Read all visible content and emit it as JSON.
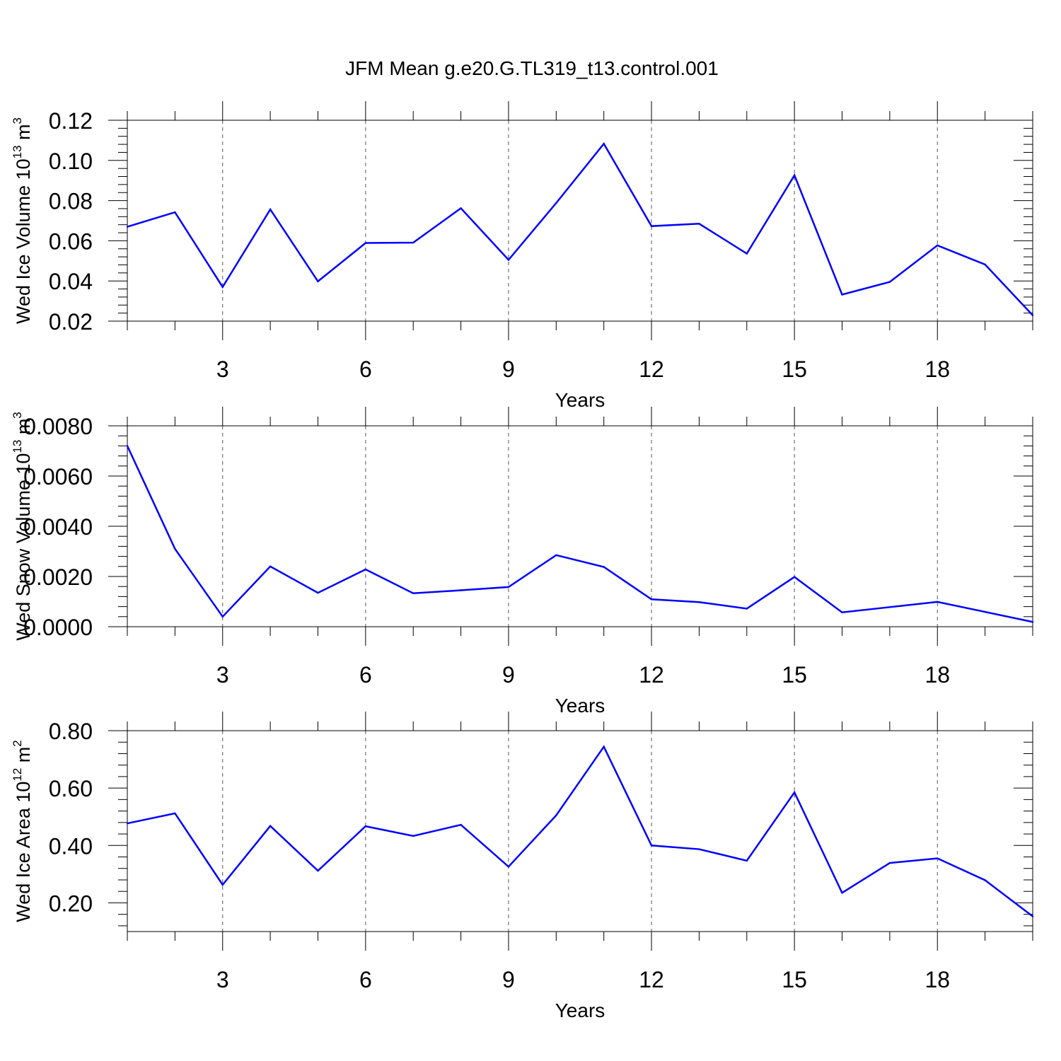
{
  "title": "JFM Mean g.e20.G.TL319_t13.control.001",
  "colors": {
    "series": "#0000ff",
    "axis": "#000000",
    "grid": "#555555"
  },
  "chart_data": [
    {
      "type": "line",
      "title": "JFM Mean g.e20.G.TL319_t13.control.001",
      "xlabel": "Years",
      "ylabel": {
        "text": "Wed Ice Volume 10",
        "exp": "13",
        "unit": " m",
        "unit_exp": "3"
      },
      "xlim": [
        1,
        20
      ],
      "ylim": [
        0.02,
        0.12
      ],
      "xticks": [
        3,
        6,
        9,
        12,
        15,
        18
      ],
      "yticks": [
        0.02,
        0.04,
        0.06,
        0.08,
        0.1,
        0.12
      ],
      "ytick_labels": [
        "0.02",
        "0.04",
        "0.06",
        "0.08",
        "0.10",
        "0.12"
      ],
      "grid": "x-dashed",
      "x": [
        1,
        2,
        3,
        4,
        5,
        6,
        7,
        8,
        9,
        10,
        11,
        12,
        13,
        14,
        15,
        16,
        17,
        18,
        19,
        20
      ],
      "series": [
        {
          "name": "Wed Ice Volume",
          "values": [
            0.067,
            0.0742,
            0.037,
            0.0756,
            0.0398,
            0.0589,
            0.0591,
            0.0762,
            0.0505,
            0.0788,
            0.1083,
            0.0673,
            0.0685,
            0.0536,
            0.0926,
            0.0332,
            0.0395,
            0.0577,
            0.0482,
            0.0229
          ]
        }
      ]
    },
    {
      "type": "line",
      "xlabel": "Years",
      "ylabel": {
        "text": "Wed Snow Volume 10",
        "exp": "13",
        "unit": " m",
        "unit_exp": "3"
      },
      "xlim": [
        1,
        20
      ],
      "ylim": [
        0.0,
        0.008
      ],
      "xticks": [
        3,
        6,
        9,
        12,
        15,
        18
      ],
      "yticks": [
        0.0,
        0.002,
        0.004,
        0.006,
        0.008
      ],
      "ytick_labels": [
        "0.0000",
        "0.0020",
        "0.0040",
        "0.0060",
        "0.0080"
      ],
      "grid": "x-dashed",
      "x": [
        1,
        2,
        3,
        4,
        5,
        6,
        7,
        8,
        9,
        10,
        11,
        12,
        13,
        14,
        15,
        16,
        17,
        18,
        19,
        20
      ],
      "series": [
        {
          "name": "Wed Snow Volume",
          "values": [
            0.0072,
            0.0031,
            0.0004,
            0.0024,
            0.00135,
            0.00228,
            0.00133,
            0.00145,
            0.00158,
            0.00285,
            0.00238,
            0.00109,
            0.00098,
            0.00072,
            0.00198,
            0.00057,
            0.00078,
            0.00099,
            0.00059,
            0.00019
          ]
        }
      ]
    },
    {
      "type": "line",
      "xlabel": "Years",
      "ylabel": {
        "text": "Wed Ice Area 10",
        "exp": "12",
        "unit": " m",
        "unit_exp": "2"
      },
      "xlim": [
        1,
        20
      ],
      "ylim": [
        0.1,
        0.8
      ],
      "xticks": [
        3,
        6,
        9,
        12,
        15,
        18
      ],
      "yticks": [
        0.2,
        0.4,
        0.6,
        0.8
      ],
      "ytick_labels": [
        "0.20",
        "0.40",
        "0.60",
        "0.80"
      ],
      "grid": "x-dashed",
      "x": [
        1,
        2,
        3,
        4,
        5,
        6,
        7,
        8,
        9,
        10,
        11,
        12,
        13,
        14,
        15,
        16,
        17,
        18,
        19,
        20
      ],
      "series": [
        {
          "name": "Wed Ice Area",
          "values": [
            0.477,
            0.512,
            0.263,
            0.468,
            0.312,
            0.467,
            0.433,
            0.472,
            0.326,
            0.505,
            0.744,
            0.4,
            0.387,
            0.347,
            0.585,
            0.235,
            0.339,
            0.355,
            0.279,
            0.153
          ]
        }
      ]
    }
  ]
}
